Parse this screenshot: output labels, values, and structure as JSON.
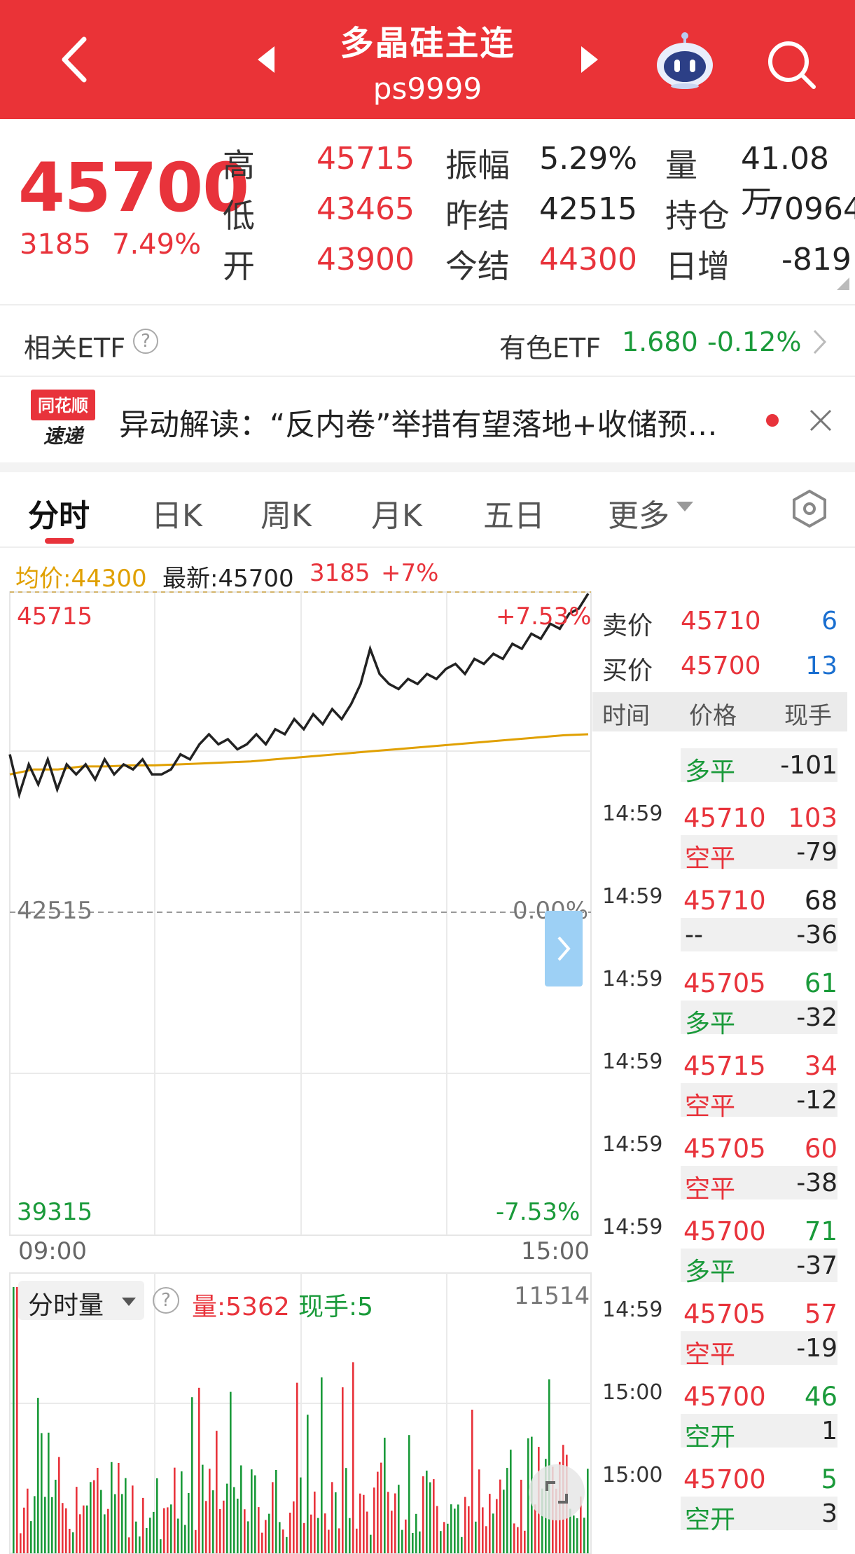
{
  "header": {
    "title": "多晶硅主连",
    "code": "ps9999"
  },
  "quote": {
    "last_price": "45700",
    "change": "3185",
    "change_pct": "7.49%",
    "rows": [
      {
        "label1": "高",
        "value1": "45715",
        "label2": "振幅",
        "value2": "5.29%",
        "label3": "量",
        "value3": "41.08万"
      },
      {
        "label1": "低",
        "value1": "43465",
        "label2": "昨结",
        "value2": "42515",
        "label3": "持仓",
        "value3": "70964"
      },
      {
        "label1": "开",
        "value1": "43900",
        "label2": "今结",
        "value2": "44300",
        "label3": "日增",
        "value3": "-819"
      }
    ]
  },
  "etf": {
    "label": "相关ETF",
    "help": "?",
    "name": "有色ETF",
    "price": "1.680",
    "change_pct": "-0.12%"
  },
  "news": {
    "logo_line1": "同花顺",
    "logo_line2": "速递",
    "text": "异动解读：“反内卷”举措有望落地+收储预…"
  },
  "tabs": {
    "items": [
      "分时",
      "日K",
      "周K",
      "月K",
      "五日",
      "更多"
    ],
    "active_index": 0
  },
  "chart_info": {
    "avg_label": "均价:44300",
    "latest_label": "最新:45700",
    "change": "3185",
    "change_pct": "+7%"
  },
  "chart_labels": {
    "high_price": "45715",
    "high_pct": "+7.53%",
    "mid_price": "42515",
    "mid_pct": "0.00%",
    "low_price": "39315",
    "low_pct": "-7.53%",
    "time_start": "09:00",
    "time_end": "15:00"
  },
  "volume_panel": {
    "selector": "分时量",
    "help": "?",
    "volume": "量:5362",
    "current_hand": "现手:5",
    "max_value": "11514"
  },
  "tick_panel": {
    "ask_label": "卖价",
    "ask_price": "45710",
    "ask_volume": "6",
    "bid_label": "买价",
    "bid_price": "45700",
    "bid_volume": "13",
    "headers": [
      "时间",
      "价格",
      "现手"
    ],
    "partial_top": {
      "type": "多平",
      "delta": "-101"
    },
    "rows": [
      {
        "time": "14:59",
        "price": "45710",
        "vol": "103",
        "vol_color": "#e8333b",
        "type": "空平",
        "type_color": "#e8333b",
        "delta": "-79"
      },
      {
        "time": "14:59",
        "price": "45710",
        "vol": "68",
        "vol_color": "#222222",
        "type": "--",
        "type_color": "#222222",
        "delta": "-36"
      },
      {
        "time": "14:59",
        "price": "45705",
        "vol": "61",
        "vol_color": "#1a9a3a",
        "type": "多平",
        "type_color": "#1a9a3a",
        "delta": "-32"
      },
      {
        "time": "14:59",
        "price": "45715",
        "vol": "34",
        "vol_color": "#e8333b",
        "type": "空平",
        "type_color": "#e8333b",
        "delta": "-12"
      },
      {
        "time": "14:59",
        "price": "45705",
        "vol": "60",
        "vol_color": "#e8333b",
        "type": "空平",
        "type_color": "#e8333b",
        "delta": "-38"
      },
      {
        "time": "14:59",
        "price": "45700",
        "vol": "71",
        "vol_color": "#1a9a3a",
        "type": "多平",
        "type_color": "#1a9a3a",
        "delta": "-37"
      },
      {
        "time": "14:59",
        "price": "45705",
        "vol": "57",
        "vol_color": "#e8333b",
        "type": "空平",
        "type_color": "#e8333b",
        "delta": "-19"
      },
      {
        "time": "15:00",
        "price": "45700",
        "vol": "46",
        "vol_color": "#1a9a3a",
        "type": "空开",
        "type_color": "#1a9a3a",
        "delta": "1"
      },
      {
        "time": "15:00",
        "price": "45700",
        "vol": "5",
        "vol_color": "#1a9a3a",
        "type": "空开",
        "type_color": "#1a9a3a",
        "delta": "3"
      }
    ]
  },
  "colors": {
    "brand_red": "#ea3337",
    "up": "#e8333b",
    "down": "#1a9a3a",
    "avg_line": "#e0a000",
    "price_line": "#222222"
  },
  "chart_data": {
    "type": "line",
    "x_range": [
      "09:00",
      "15:00"
    ],
    "ylim": [
      39315,
      45715
    ],
    "reference_price": 42515,
    "series": [
      {
        "values": [
          44100,
          43700,
          44000,
          43800,
          44050,
          43750,
          44000,
          43900,
          44000,
          43850,
          44050,
          43900,
          44000,
          43950,
          44050,
          43900,
          43900,
          43950,
          44100,
          44050,
          44200,
          44300,
          44200,
          44250,
          44150,
          44200,
          44300,
          44200,
          44350,
          44300,
          44450,
          44350,
          44500,
          44400,
          44550,
          44450,
          44600,
          44800,
          45150,
          44900,
          44800,
          44750,
          44850,
          44800,
          44900,
          44850,
          44950,
          45000,
          44900,
          45050,
          45000,
          45100,
          45050,
          45200,
          45150,
          45300,
          45250,
          45400,
          45350,
          45500,
          45550,
          45700
        ]
      },
      {
        "values": [
          43900,
          43950,
          43950,
          43980,
          43980,
          43990,
          43990,
          44000,
          44010,
          44020,
          44030,
          44050,
          44070,
          44090,
          44110,
          44130,
          44150,
          44170,
          44190,
          44210,
          44230,
          44250,
          44270,
          44290,
          44300
        ]
      }
    ]
  }
}
